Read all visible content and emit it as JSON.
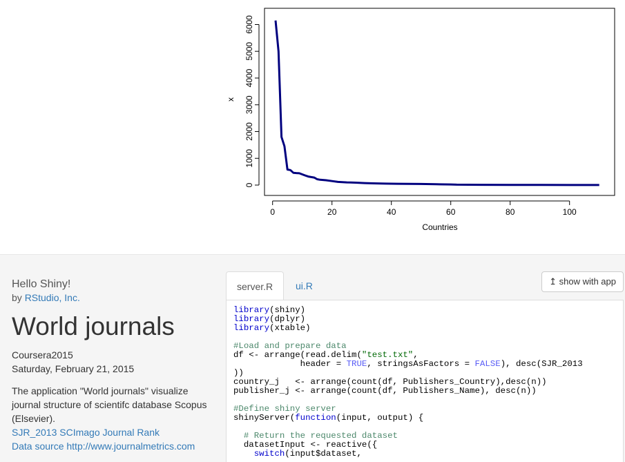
{
  "chart_data": {
    "type": "line",
    "xlabel": "Countries",
    "ylabel": "x",
    "xlim": [
      0,
      112
    ],
    "ylim": [
      0,
      6200
    ],
    "xticks": [
      0,
      20,
      40,
      60,
      80,
      100
    ],
    "yticks": [
      0,
      1000,
      2000,
      3000,
      4000,
      5000,
      6000
    ],
    "color": "#00007f",
    "x": [
      1,
      2,
      3,
      4,
      5,
      6,
      7,
      8,
      9,
      10,
      11,
      12,
      13,
      14,
      15,
      16,
      18,
      20,
      22,
      25,
      28,
      31,
      34,
      38,
      42,
      46,
      50,
      55,
      60,
      62,
      70,
      80,
      90,
      100,
      110
    ],
    "y": [
      6150,
      5000,
      1800,
      1450,
      580,
      560,
      460,
      450,
      440,
      400,
      360,
      320,
      300,
      280,
      220,
      200,
      180,
      150,
      120,
      100,
      90,
      75,
      65,
      55,
      50,
      45,
      40,
      30,
      22,
      15,
      10,
      8,
      5,
      3,
      2
    ]
  },
  "app": {
    "hello": "Hello Shiny!",
    "by_prefix": "by ",
    "by_link": "RStudio, Inc.",
    "title": "World journals",
    "course": "Coursera2015",
    "date": "Saturday, February 21, 2015",
    "description": "The application \"World journals\" visualize journal structure of scientifc database Scopus (Elsevier).",
    "link1": "SJR_2013 SCImago Journal Rank",
    "link2": "Data source http://www.journalmetrics.com"
  },
  "tabs": [
    "server.R",
    "ui.R"
  ],
  "show_app_label": "show with app",
  "code_lines": [
    [
      [
        "kw",
        "library"
      ],
      [
        "",
        "(shiny)"
      ]
    ],
    [
      [
        "kw",
        "library"
      ],
      [
        "",
        "(dplyr)"
      ]
    ],
    [
      [
        "kw",
        "library"
      ],
      [
        "",
        "(xtable)"
      ]
    ],
    [],
    [
      [
        "cm",
        "#Load and prepare data"
      ]
    ],
    [
      [
        "",
        "df <- arrange(read.delim("
      ],
      [
        "str",
        "\"test.txt\""
      ],
      [
        "",
        ","
      ]
    ],
    [
      [
        "",
        "             header = "
      ],
      [
        "con",
        "TRUE"
      ],
      [
        "",
        ", stringsAsFactors = "
      ],
      [
        "con",
        "FALSE"
      ],
      [
        "",
        "), desc(SJR_2013"
      ]
    ],
    [
      [
        "",
        "))"
      ]
    ],
    [
      [
        "",
        "country_j   <- arrange(count(df, Publishers_Country),desc(n))"
      ]
    ],
    [
      [
        "",
        "publisher_j <- arrange(count(df, Publishers_Name), desc(n))"
      ]
    ],
    [],
    [
      [
        "cm",
        "#Define shiny server"
      ]
    ],
    [
      [
        "",
        "shinyServer("
      ],
      [
        "kw",
        "function"
      ],
      [
        "",
        "(input, output) {"
      ]
    ],
    [],
    [
      [
        "",
        "  "
      ],
      [
        "cm",
        "# Return the requested dataset"
      ]
    ],
    [
      [
        "",
        "  datasetInput <- reactive({"
      ]
    ],
    [
      [
        "",
        "    "
      ],
      [
        "kw",
        "switch"
      ],
      [
        "",
        "(input$dataset,"
      ]
    ]
  ]
}
